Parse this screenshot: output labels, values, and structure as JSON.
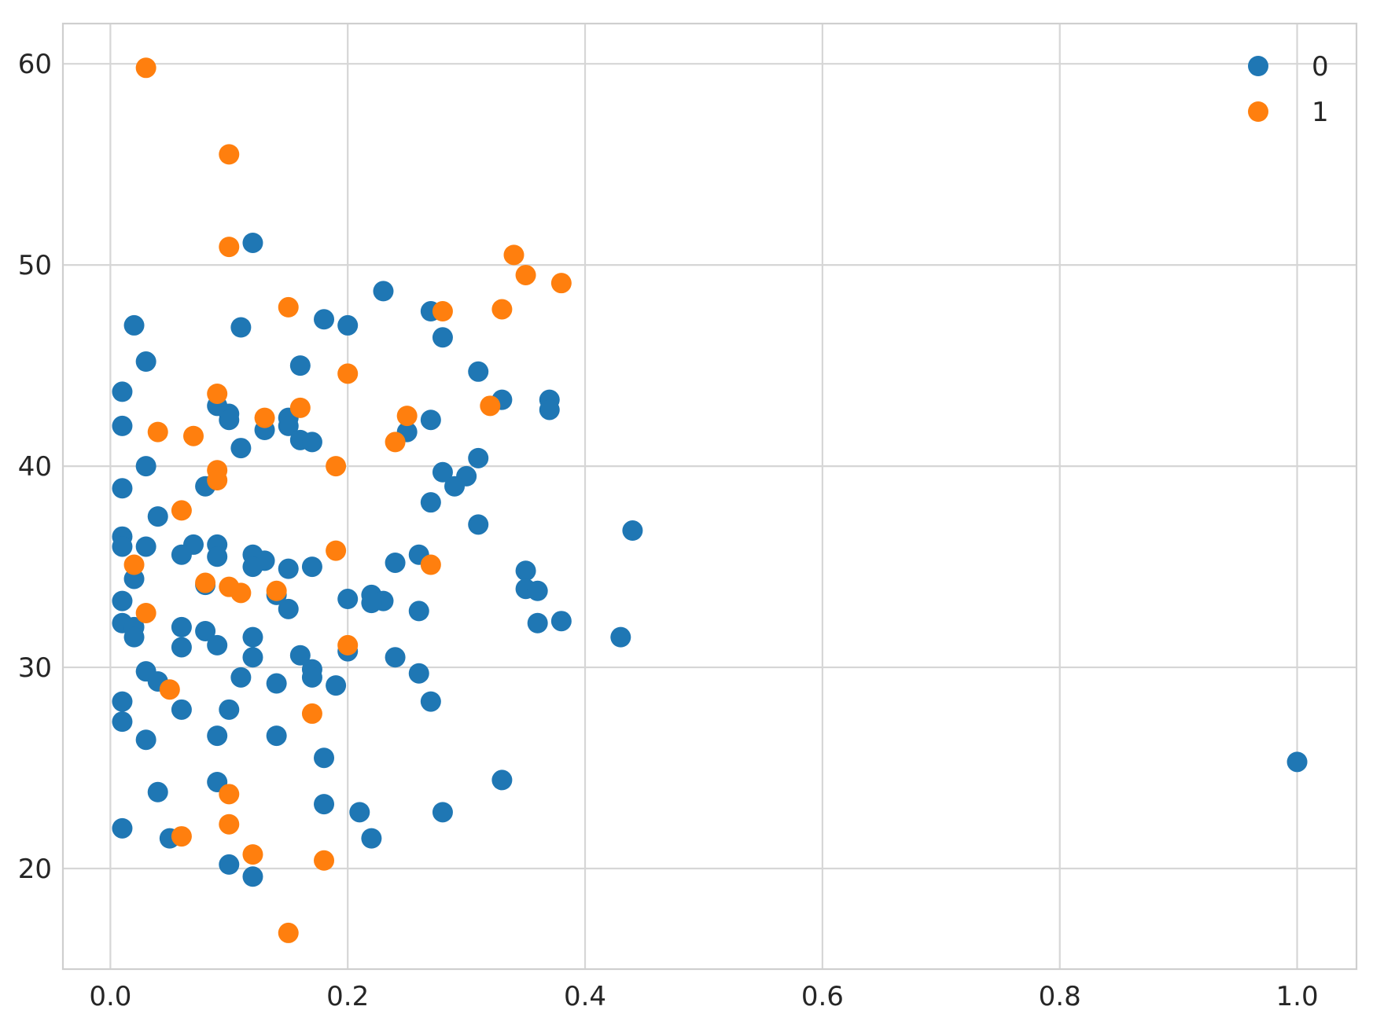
{
  "chart_data": {
    "type": "scatter",
    "title": "",
    "xlabel": "",
    "ylabel": "",
    "xlim": [
      -0.04,
      1.05
    ],
    "ylim": [
      15,
      62
    ],
    "grid": true,
    "legend_position": "top-right",
    "x_ticks": [
      0.0,
      0.2,
      0.4,
      0.6,
      0.8,
      1.0
    ],
    "x_tick_labels": [
      "0.0",
      "0.2",
      "0.4",
      "0.6",
      "0.8",
      "1.0"
    ],
    "y_ticks": [
      20,
      30,
      40,
      50,
      60
    ],
    "y_tick_labels": [
      "20",
      "30",
      "40",
      "50",
      "60"
    ],
    "series": [
      {
        "name": "0",
        "color": "#1f77b4",
        "points": [
          [
            0.12,
            51.1
          ],
          [
            0.23,
            48.7
          ],
          [
            0.27,
            47.7
          ],
          [
            0.18,
            47.3
          ],
          [
            0.02,
            47.0
          ],
          [
            0.2,
            47.0
          ],
          [
            0.11,
            46.9
          ],
          [
            0.28,
            46.4
          ],
          [
            0.03,
            45.2
          ],
          [
            0.16,
            45.0
          ],
          [
            0.31,
            44.7
          ],
          [
            0.01,
            43.7
          ],
          [
            0.33,
            43.3
          ],
          [
            0.37,
            43.3
          ],
          [
            0.09,
            43.0
          ],
          [
            0.37,
            42.8
          ],
          [
            0.1,
            42.6
          ],
          [
            0.1,
            42.3
          ],
          [
            0.15,
            42.4
          ],
          [
            0.27,
            42.3
          ],
          [
            0.15,
            42.0
          ],
          [
            0.01,
            42.0
          ],
          [
            0.13,
            41.8
          ],
          [
            0.25,
            41.7
          ],
          [
            0.16,
            41.3
          ],
          [
            0.17,
            41.2
          ],
          [
            0.11,
            40.9
          ],
          [
            0.31,
            40.4
          ],
          [
            0.03,
            40.0
          ],
          [
            0.28,
            39.7
          ],
          [
            0.3,
            39.5
          ],
          [
            0.29,
            39.0
          ],
          [
            0.01,
            38.9
          ],
          [
            0.08,
            39.0
          ],
          [
            0.27,
            38.2
          ],
          [
            0.04,
            37.5
          ],
          [
            0.31,
            37.1
          ],
          [
            0.44,
            36.8
          ],
          [
            0.01,
            36.5
          ],
          [
            0.01,
            36.0
          ],
          [
            0.03,
            36.0
          ],
          [
            0.07,
            36.1
          ],
          [
            0.09,
            36.1
          ],
          [
            0.06,
            35.6
          ],
          [
            0.09,
            35.5
          ],
          [
            0.12,
            35.6
          ],
          [
            0.13,
            35.3
          ],
          [
            0.24,
            35.2
          ],
          [
            0.26,
            35.6
          ],
          [
            0.12,
            35.0
          ],
          [
            0.15,
            34.9
          ],
          [
            0.17,
            35.0
          ],
          [
            0.35,
            34.8
          ],
          [
            0.02,
            34.4
          ],
          [
            0.08,
            34.1
          ],
          [
            0.35,
            33.9
          ],
          [
            0.36,
            33.8
          ],
          [
            0.14,
            33.6
          ],
          [
            0.22,
            33.6
          ],
          [
            0.2,
            33.4
          ],
          [
            0.23,
            33.3
          ],
          [
            0.01,
            33.3
          ],
          [
            0.22,
            33.2
          ],
          [
            0.15,
            32.9
          ],
          [
            0.26,
            32.8
          ],
          [
            0.38,
            32.3
          ],
          [
            0.01,
            32.2
          ],
          [
            0.36,
            32.2
          ],
          [
            0.02,
            32.0
          ],
          [
            0.06,
            32.0
          ],
          [
            0.08,
            31.8
          ],
          [
            0.02,
            31.5
          ],
          [
            0.12,
            31.5
          ],
          [
            0.43,
            31.5
          ],
          [
            0.09,
            31.1
          ],
          [
            0.06,
            31.0
          ],
          [
            0.2,
            30.8
          ],
          [
            0.12,
            30.5
          ],
          [
            0.16,
            30.6
          ],
          [
            0.24,
            30.5
          ],
          [
            0.17,
            29.9
          ],
          [
            0.03,
            29.8
          ],
          [
            0.26,
            29.7
          ],
          [
            0.17,
            29.5
          ],
          [
            0.11,
            29.5
          ],
          [
            0.04,
            29.3
          ],
          [
            0.14,
            29.2
          ],
          [
            0.19,
            29.1
          ],
          [
            0.01,
            28.3
          ],
          [
            0.27,
            28.3
          ],
          [
            0.06,
            27.9
          ],
          [
            0.1,
            27.9
          ],
          [
            0.01,
            27.3
          ],
          [
            0.09,
            26.6
          ],
          [
            0.14,
            26.6
          ],
          [
            0.03,
            26.4
          ],
          [
            0.18,
            25.5
          ],
          [
            1.0,
            25.3
          ],
          [
            0.33,
            24.4
          ],
          [
            0.09,
            24.3
          ],
          [
            0.04,
            23.8
          ],
          [
            0.18,
            23.2
          ],
          [
            0.21,
            22.8
          ],
          [
            0.28,
            22.8
          ],
          [
            0.01,
            22.0
          ],
          [
            0.22,
            21.5
          ],
          [
            0.05,
            21.5
          ],
          [
            0.1,
            20.2
          ],
          [
            0.12,
            19.6
          ]
        ]
      },
      {
        "name": "1",
        "color": "#ff7f0e",
        "points": [
          [
            0.03,
            59.8
          ],
          [
            0.1,
            55.5
          ],
          [
            0.1,
            50.9
          ],
          [
            0.34,
            50.5
          ],
          [
            0.35,
            49.5
          ],
          [
            0.38,
            49.1
          ],
          [
            0.15,
            47.9
          ],
          [
            0.28,
            47.7
          ],
          [
            0.33,
            47.8
          ],
          [
            0.2,
            44.6
          ],
          [
            0.09,
            43.6
          ],
          [
            0.32,
            43.0
          ],
          [
            0.16,
            42.9
          ],
          [
            0.13,
            42.4
          ],
          [
            0.25,
            42.5
          ],
          [
            0.04,
            41.7
          ],
          [
            0.07,
            41.5
          ],
          [
            0.24,
            41.2
          ],
          [
            0.19,
            40.0
          ],
          [
            0.09,
            39.8
          ],
          [
            0.09,
            39.3
          ],
          [
            0.06,
            37.8
          ],
          [
            0.19,
            35.8
          ],
          [
            0.02,
            35.1
          ],
          [
            0.27,
            35.1
          ],
          [
            0.08,
            34.2
          ],
          [
            0.1,
            34.0
          ],
          [
            0.11,
            33.7
          ],
          [
            0.14,
            33.8
          ],
          [
            0.03,
            32.7
          ],
          [
            0.2,
            31.1
          ],
          [
            0.05,
            28.9
          ],
          [
            0.17,
            27.7
          ],
          [
            0.1,
            23.7
          ],
          [
            0.1,
            22.2
          ],
          [
            0.06,
            21.6
          ],
          [
            0.12,
            20.7
          ],
          [
            0.18,
            20.4
          ],
          [
            0.15,
            16.8
          ]
        ]
      }
    ]
  }
}
